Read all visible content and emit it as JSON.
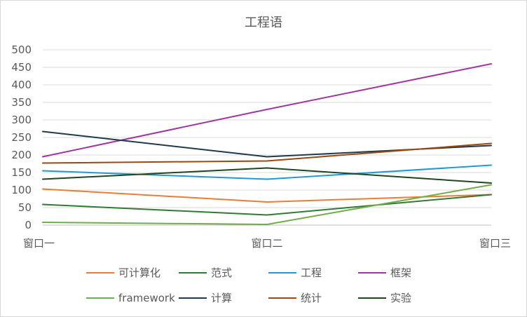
{
  "chart_data": {
    "type": "line",
    "title": "工程语",
    "categories": [
      "窗口一",
      "窗口二",
      "窗口三"
    ],
    "ylim": [
      0,
      500
    ],
    "yticks": [
      0,
      50,
      100,
      150,
      200,
      250,
      300,
      350,
      400,
      450,
      500
    ],
    "grid": true,
    "legend_position": "bottom",
    "series": [
      {
        "name": "可计算化",
        "color": "#ED7D31",
        "values": [
          103,
          66,
          87
        ]
      },
      {
        "name": "范式",
        "color": "#2E7D32",
        "values": [
          59,
          29,
          87
        ]
      },
      {
        "name": "工程",
        "color": "#1F9AD6",
        "values": [
          155,
          131,
          171
        ]
      },
      {
        "name": "框架",
        "color": "#A0379F",
        "values": [
          195,
          330,
          460
        ]
      },
      {
        "name": "framework",
        "color": "#70AD47",
        "values": [
          8,
          2,
          115
        ]
      },
      {
        "name": "计算",
        "color": "#1F3A4D",
        "values": [
          267,
          195,
          227
        ]
      },
      {
        "name": "统计",
        "color": "#9E480E",
        "values": [
          177,
          183,
          233
        ]
      },
      {
        "name": "实验",
        "color": "#1E4620",
        "values": [
          131,
          163,
          120
        ]
      }
    ]
  }
}
